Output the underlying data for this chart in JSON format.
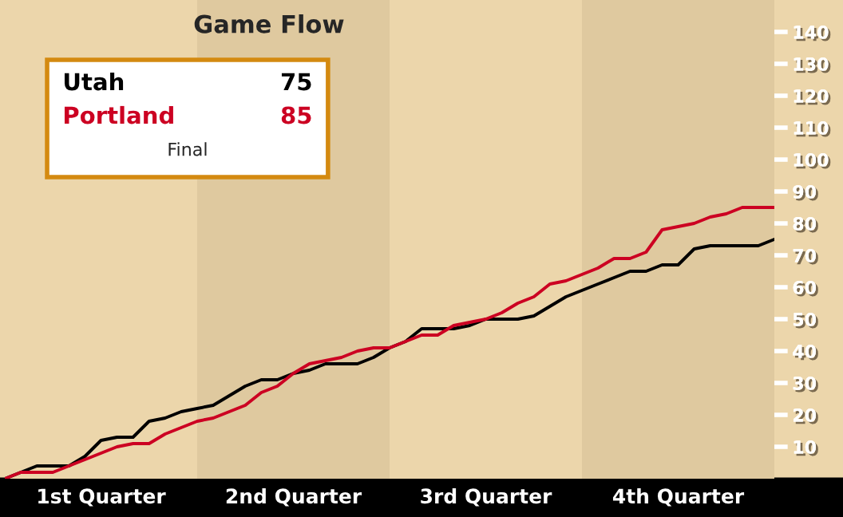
{
  "chart_data": {
    "type": "line",
    "title": "Game Flow",
    "categories": [
      null,
      null,
      null,
      null,
      null,
      null,
      null,
      null,
      null,
      null,
      null,
      null,
      null,
      null,
      null,
      null,
      null,
      null,
      null,
      null,
      null,
      null,
      null,
      null,
      null,
      null,
      null,
      null,
      null,
      null,
      null,
      null,
      null,
      null,
      null,
      null,
      null,
      null,
      null,
      null,
      null,
      null,
      null,
      null,
      null,
      null,
      null,
      null,
      null
    ],
    "series": [
      {
        "name": "Utah",
        "color": "#000000",
        "values": [
          0,
          2,
          4,
          4,
          4,
          7,
          12,
          13,
          13,
          18,
          19,
          21,
          22,
          23,
          26,
          29,
          31,
          31,
          33,
          34,
          36,
          36,
          36,
          38,
          41,
          43,
          47,
          47,
          47,
          48,
          50,
          50,
          50,
          51,
          54,
          57,
          59,
          61,
          63,
          65,
          65,
          67,
          67,
          72,
          73,
          73,
          73,
          73,
          75
        ]
      },
      {
        "name": "Portland",
        "color": "#cc0022",
        "values": [
          0,
          2,
          2,
          2,
          4,
          6,
          8,
          10,
          11,
          11,
          14,
          16,
          18,
          19,
          21,
          23,
          27,
          29,
          33,
          36,
          37,
          38,
          40,
          41,
          41,
          43,
          45,
          45,
          48,
          49,
          50,
          52,
          55,
          57,
          61,
          62,
          64,
          66,
          69,
          69,
          71,
          78,
          79,
          80,
          82,
          83,
          85,
          85,
          85
        ]
      }
    ],
    "ylim": [
      0,
      150
    ],
    "yticks": [
      10,
      20,
      30,
      40,
      50,
      60,
      70,
      80,
      90,
      100,
      110,
      120,
      130,
      140
    ],
    "tick_labels": "y",
    "annotations": [
      "75",
      "85",
      "Final",
      "1st Quarter",
      "2nd Quarter",
      "3rd Quarter",
      "4th Quarter"
    ],
    "legend": "top left",
    "grid": false,
    "marker": "none",
    "line_style": "solid"
  }
}
